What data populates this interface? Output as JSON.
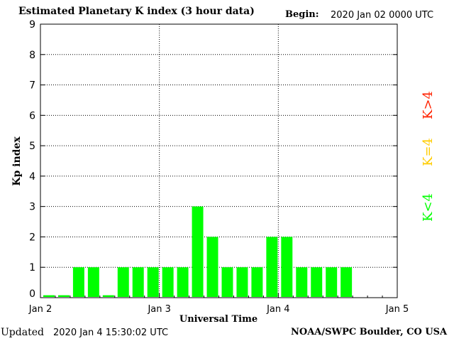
{
  "header": {
    "title": "Estimated Planetary K index (3 hour data)",
    "begin_label": "Begin:",
    "begin_value": "2020 Jan 02 0000 UTC"
  },
  "footer": {
    "updated_label": "Updated",
    "updated_value": "2020 Jan  4 15:30:02 UTC",
    "credit": "NOAA/SWPC Boulder, CO USA"
  },
  "legend": [
    {
      "label": "K>4",
      "color": "#ff2200"
    },
    {
      "label": "K=4",
      "color": "#ffcc00"
    },
    {
      "label": "K<4",
      "color": "#00ff00"
    }
  ],
  "chart_data": {
    "type": "bar",
    "title": "Estimated Planetary K index (3 hour data)",
    "xlabel": "Universal Time",
    "ylabel": "Kp index",
    "x_tick_labels": [
      "Jan 2",
      "Jan 3",
      "Jan 4",
      "Jan 5"
    ],
    "y_ticks": [
      0,
      1,
      2,
      3,
      4,
      5,
      6,
      7,
      8,
      9
    ],
    "ylim": [
      0,
      9
    ],
    "grid": true,
    "bar_color": "#00ff00",
    "interval_hours": 3,
    "values": [
      0,
      0,
      1,
      1,
      0,
      1,
      1,
      1,
      1,
      1,
      3,
      2,
      1,
      1,
      1,
      2,
      2,
      1,
      1,
      1,
      1
    ]
  }
}
